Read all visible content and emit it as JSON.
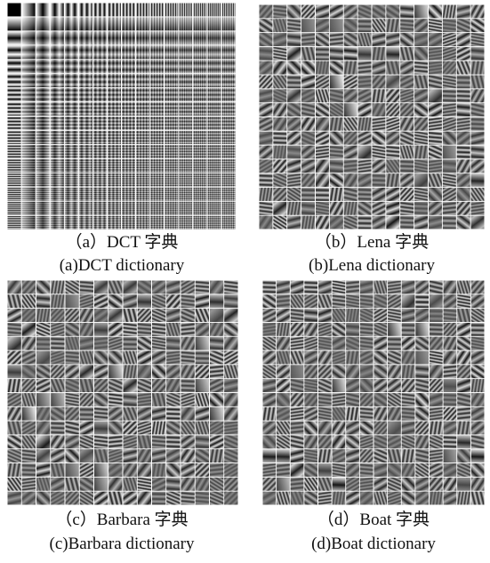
{
  "panels": [
    {
      "caption_cn": "（a）DCT 字典",
      "caption_en": "(a)DCT dictionary"
    },
    {
      "caption_cn": "（b）Lena 字典",
      "caption_en": "(b)Lena dictionary"
    },
    {
      "caption_cn": "（c）Barbara 字典",
      "caption_en": "(c)Barbara dictionary"
    },
    {
      "caption_cn": "（d）Boat 字典",
      "caption_en": "(d)Boat dictionary"
    }
  ]
}
